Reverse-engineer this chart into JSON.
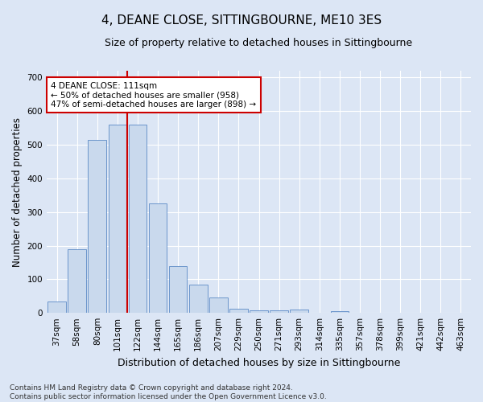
{
  "title": "4, DEANE CLOSE, SITTINGBOURNE, ME10 3ES",
  "subtitle": "Size of property relative to detached houses in Sittingbourne",
  "xlabel": "Distribution of detached houses by size in Sittingbourne",
  "ylabel": "Number of detached properties",
  "categories": [
    "37sqm",
    "58sqm",
    "80sqm",
    "101sqm",
    "122sqm",
    "144sqm",
    "165sqm",
    "186sqm",
    "207sqm",
    "229sqm",
    "250sqm",
    "271sqm",
    "293sqm",
    "314sqm",
    "335sqm",
    "357sqm",
    "378sqm",
    "399sqm",
    "421sqm",
    "442sqm",
    "463sqm"
  ],
  "values": [
    35,
    190,
    515,
    560,
    560,
    325,
    138,
    85,
    47,
    12,
    8,
    8,
    10,
    0,
    6,
    0,
    0,
    0,
    0,
    0,
    0
  ],
  "bar_color": "#c9d9ed",
  "bar_edge_color": "#5b8ac5",
  "vline_x": 3.5,
  "vline_color": "#cc0000",
  "annotation_text": "4 DEANE CLOSE: 111sqm\n← 50% of detached houses are smaller (958)\n47% of semi-detached houses are larger (898) →",
  "annotation_box_color": "#ffffff",
  "annotation_box_edge": "#cc0000",
  "ylim": [
    0,
    720
  ],
  "yticks": [
    0,
    100,
    200,
    300,
    400,
    500,
    600,
    700
  ],
  "footnote": "Contains HM Land Registry data © Crown copyright and database right 2024.\nContains public sector information licensed under the Open Government Licence v3.0.",
  "background_color": "#dce6f5",
  "plot_bg_color": "#dce6f5",
  "grid_color": "#ffffff",
  "title_fontsize": 11,
  "subtitle_fontsize": 9,
  "axis_label_fontsize": 8.5,
  "tick_fontsize": 7.5,
  "footnote_fontsize": 6.5
}
